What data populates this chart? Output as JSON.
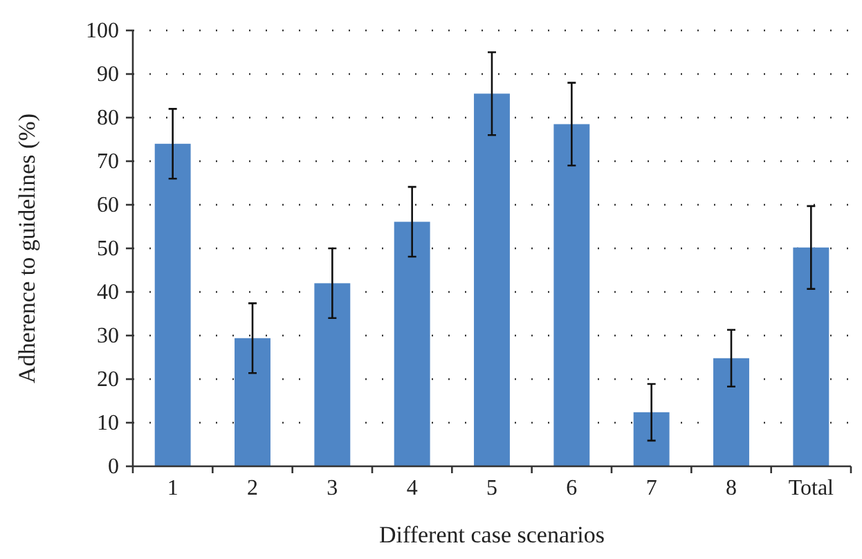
{
  "chart_data": {
    "type": "bar",
    "xlabel": "Different case scenarios",
    "ylabel": "Adherence to guidelines (%)",
    "categories": [
      "1",
      "2",
      "3",
      "4",
      "5",
      "6",
      "7",
      "8",
      "Total"
    ],
    "values": [
      74,
      29.4,
      42,
      56.1,
      85.5,
      78.5,
      12.4,
      24.8,
      50.2
    ],
    "errors": [
      8,
      8,
      8,
      8,
      9.5,
      9.5,
      6.5,
      6.5,
      9.5
    ],
    "color": "#4f86c6",
    "ylim": [
      0,
      100
    ],
    "yticks": [
      0,
      10,
      20,
      30,
      40,
      50,
      60,
      70,
      80,
      90,
      100
    ],
    "grid": "y"
  }
}
